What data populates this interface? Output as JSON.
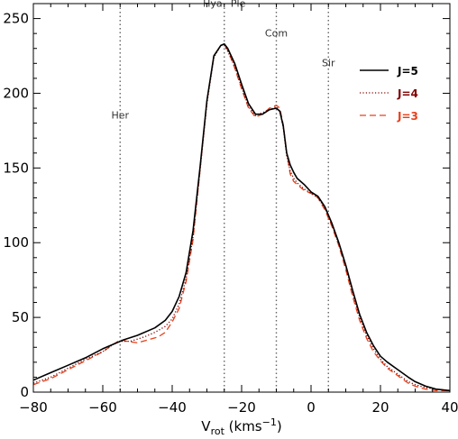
{
  "chart_data": {
    "type": "line",
    "xlabel_main": "V",
    "xlabel_sub": "rot",
    "xlabel_unit_open": " (kms",
    "xlabel_unit_sup": "−1",
    "xlabel_unit_close": ")",
    "ylabel": "",
    "xlim": [
      -80,
      40
    ],
    "ylim": [
      0,
      260
    ],
    "xticks": [
      -80,
      -60,
      -40,
      -20,
      0,
      20,
      40
    ],
    "xtick_labels": [
      "−80",
      "−60",
      "−40",
      "−20",
      "0",
      "20",
      "40"
    ],
    "yticks": [
      0,
      50,
      100,
      150,
      200,
      250
    ],
    "ytick_labels": [
      "0",
      "50",
      "100",
      "150",
      "200",
      "250"
    ],
    "grid": false,
    "legend_position": "top-right",
    "vlines": [
      {
        "x": -55,
        "label": "Her",
        "label_y": 183
      },
      {
        "x": -25,
        "label": "Hya−Ple",
        "label_y": 258
      },
      {
        "x": -10,
        "label": "Com",
        "label_y": 238
      },
      {
        "x": 5,
        "label": "Sir",
        "label_y": 218
      }
    ],
    "series": [
      {
        "name": "J=5",
        "color": "#000000",
        "style": "solid",
        "x": [
          -80,
          -75,
          -70,
          -65,
          -60,
          -56,
          -54,
          -50,
          -45,
          -42,
          -40,
          -38,
          -36,
          -34,
          -32,
          -30,
          -28,
          -26,
          -25,
          -24,
          -22,
          -20,
          -18,
          -16,
          -14,
          -12,
          -10,
          -9,
          -8,
          -7,
          -6,
          -5,
          -4,
          -2,
          0,
          2,
          4,
          6,
          8,
          10,
          12,
          14,
          16,
          18,
          20,
          22,
          25,
          28,
          30,
          33,
          36,
          40
        ],
        "y": [
          8,
          13,
          18,
          23,
          29,
          33,
          35,
          38,
          43,
          48,
          54,
          64,
          80,
          108,
          150,
          195,
          225,
          232,
          233,
          230,
          220,
          206,
          193,
          186,
          186,
          189,
          190,
          188,
          178,
          160,
          152,
          147,
          143,
          139,
          134,
          131,
          124,
          113,
          100,
          85,
          68,
          52,
          40,
          31,
          24,
          20,
          15,
          10,
          7,
          4,
          2,
          1
        ]
      },
      {
        "name": "J=4",
        "color": "#800000",
        "style": "dotted",
        "x": [
          -80,
          -75,
          -70,
          -65,
          -60,
          -57,
          -55,
          -52,
          -48,
          -45,
          -42,
          -40,
          -38,
          -36,
          -34,
          -32,
          -30,
          -28,
          -26,
          -25,
          -24,
          -22,
          -20,
          -18,
          -16,
          -14,
          -12,
          -10,
          -9,
          -8,
          -7,
          -6,
          -5,
          -4,
          -2,
          0,
          2,
          4,
          6,
          8,
          10,
          12,
          14,
          16,
          18,
          20,
          22,
          25,
          28,
          30,
          33,
          36,
          40
        ],
        "y": [
          6,
          10,
          16,
          22,
          27,
          32,
          34,
          34,
          37,
          40,
          44,
          49,
          59,
          76,
          104,
          148,
          193,
          224,
          232,
          232,
          228,
          218,
          204,
          191,
          185,
          187,
          189,
          191,
          188,
          177,
          158,
          148,
          143,
          140,
          136,
          133,
          130,
          123,
          112,
          99,
          84,
          66,
          50,
          38,
          29,
          22,
          17,
          12,
          7,
          5,
          3,
          2,
          1
        ]
      },
      {
        "name": "J=3",
        "color": "#e8401a",
        "style": "dashed",
        "x": [
          -80,
          -75,
          -70,
          -65,
          -60,
          -57,
          -55,
          -53,
          -50,
          -47,
          -44,
          -42,
          -40,
          -38,
          -36,
          -34,
          -32,
          -30,
          -28,
          -26,
          -25,
          -24,
          -22,
          -20,
          -18,
          -16,
          -14,
          -12,
          -10,
          -9,
          -8,
          -7,
          -6,
          -5,
          -4,
          -2,
          0,
          2,
          4,
          6,
          8,
          10,
          12,
          14,
          16,
          18,
          20,
          22,
          25,
          28,
          30,
          33,
          36,
          40
        ],
        "y": [
          5,
          9,
          15,
          21,
          27,
          32,
          35,
          34,
          33,
          35,
          37,
          40,
          47,
          56,
          74,
          102,
          148,
          195,
          225,
          232,
          232,
          229,
          217,
          203,
          190,
          184,
          186,
          190,
          192,
          190,
          179,
          160,
          146,
          141,
          139,
          135,
          133,
          130,
          122,
          111,
          98,
          82,
          64,
          48,
          36,
          27,
          21,
          16,
          11,
          6,
          4,
          2,
          1,
          1
        ]
      }
    ]
  }
}
